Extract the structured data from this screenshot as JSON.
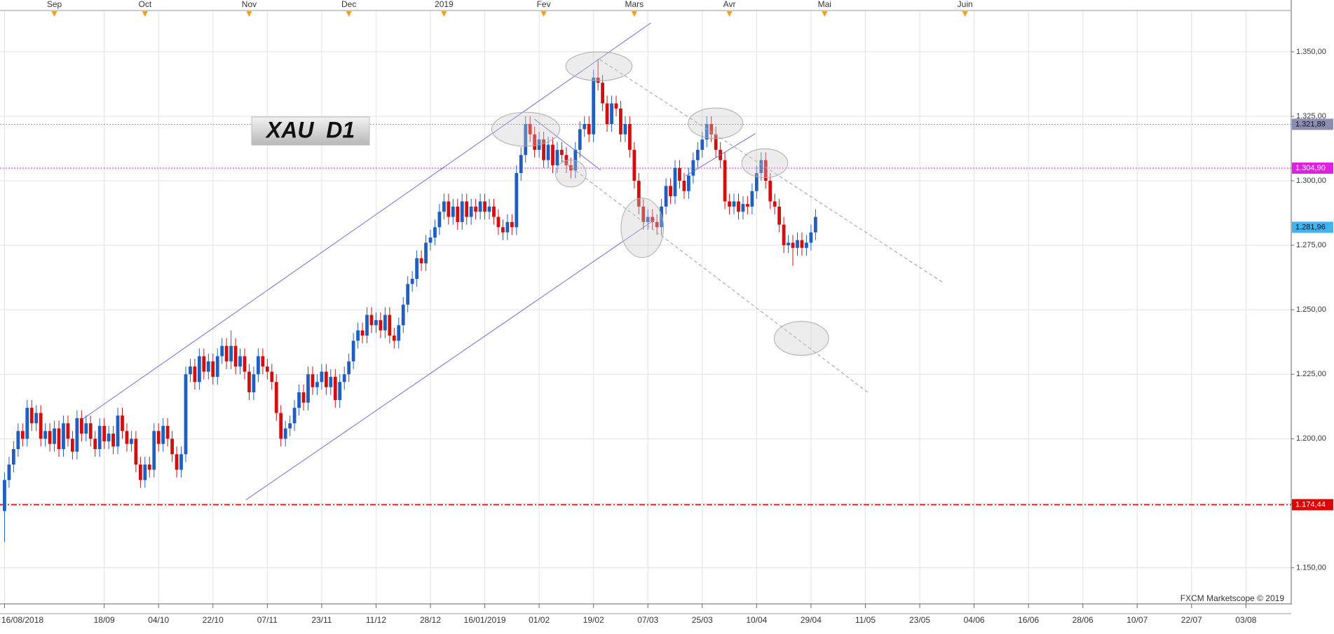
{
  "chart_data": {
    "type": "candlestick",
    "title": "XAU  D1",
    "credit": "FXCM Marketscope © 2019",
    "up_color": "#1f5fbf",
    "down_color": "#d01010",
    "grid": true,
    "xlim": [
      -1,
      284
    ],
    "ylim": [
      1136,
      1366
    ],
    "yticks": [
      {
        "value": 1150,
        "label": "1.150,00"
      },
      {
        "value": 1175,
        "label": "1.175,00"
      },
      {
        "value": 1200,
        "label": "1.200,00"
      },
      {
        "value": 1225,
        "label": "1.225,00"
      },
      {
        "value": 1250,
        "label": "1.250,00"
      },
      {
        "value": 1275,
        "label": "1.275,00"
      },
      {
        "value": 1300,
        "label": "1.300,00"
      },
      {
        "value": 1325,
        "label": "1.325,00"
      },
      {
        "value": 1350,
        "label": "1.350,00"
      }
    ],
    "xticks": [
      {
        "value": 0,
        "label": "16/08/2018"
      },
      {
        "value": 22,
        "label": "18/09"
      },
      {
        "value": 34,
        "label": "04/10"
      },
      {
        "value": 46,
        "label": "22/10"
      },
      {
        "value": 58,
        "label": "07/11"
      },
      {
        "value": 70,
        "label": "23/11"
      },
      {
        "value": 82,
        "label": "11/12"
      },
      {
        "value": 94,
        "label": "28/12"
      },
      {
        "value": 106,
        "label": "16/01/2019"
      },
      {
        "value": 118,
        "label": "01/02"
      },
      {
        "value": 130,
        "label": "19/02"
      },
      {
        "value": 142,
        "label": "07/03"
      },
      {
        "value": 154,
        "label": "25/03"
      },
      {
        "value": 166,
        "label": "10/04"
      },
      {
        "value": 178,
        "label": "29/04"
      },
      {
        "value": 190,
        "label": "11/05"
      },
      {
        "value": 202,
        "label": "23/05"
      },
      {
        "value": 214,
        "label": "04/06"
      },
      {
        "value": 226,
        "label": "16/06"
      },
      {
        "value": 238,
        "label": "28/06"
      },
      {
        "value": 250,
        "label": "10/07"
      },
      {
        "value": 262,
        "label": "22/07"
      },
      {
        "value": 274,
        "label": "03/08"
      }
    ],
    "x2ticks": [
      {
        "value": 11,
        "label": "Sep"
      },
      {
        "value": 31,
        "label": "Oct"
      },
      {
        "value": 54,
        "label": "Nov"
      },
      {
        "value": 76,
        "label": "Dec"
      },
      {
        "value": 97,
        "label": "2019"
      },
      {
        "value": 119,
        "label": "Fev"
      },
      {
        "value": 139,
        "label": "Mars"
      },
      {
        "value": 160,
        "label": "Avr"
      },
      {
        "value": 181,
        "label": "Mai"
      },
      {
        "value": 212,
        "label": "Juin"
      }
    ],
    "levels": [
      {
        "value": 1321.89,
        "label": "1.321,89",
        "color": "#8c8cb4",
        "text_color": "#111111",
        "style": "dotted"
      },
      {
        "value": 1304.9,
        "label": "1.304,90",
        "color": "#e020e0",
        "text_color": "#ffffff",
        "style": "dotted"
      },
      {
        "value": 1281.96,
        "label": "1.281,96",
        "color": "#40b4f0",
        "text_color": "#111111",
        "style": "none"
      },
      {
        "value": 1174.44,
        "label": "1.174,44",
        "color": "#e00000",
        "text_color": "#ffffff",
        "style": "dash-dot"
      }
    ],
    "x": [
      0,
      1,
      2,
      3,
      4,
      5,
      6,
      7,
      8,
      9,
      10,
      11,
      12,
      13,
      14,
      15,
      16,
      17,
      18,
      19,
      20,
      21,
      22,
      23,
      24,
      25,
      26,
      27,
      28,
      29,
      30,
      31,
      32,
      33,
      34,
      35,
      36,
      37,
      38,
      39,
      40,
      41,
      42,
      43,
      44,
      45,
      46,
      47,
      48,
      49,
      50,
      51,
      52,
      53,
      54,
      55,
      56,
      57,
      58,
      59,
      60,
      61,
      62,
      63,
      64,
      65,
      66,
      67,
      68,
      69,
      70,
      71,
      72,
      73,
      74,
      75,
      76,
      77,
      78,
      79,
      80,
      81,
      82,
      83,
      84,
      85,
      86,
      87,
      88,
      89,
      90,
      91,
      92,
      93,
      94,
      95,
      96,
      97,
      98,
      99,
      100,
      101,
      102,
      103,
      104,
      105,
      106,
      107,
      108,
      109,
      110,
      111,
      112,
      113,
      114,
      115,
      116,
      117,
      118,
      119,
      120,
      121,
      122,
      123,
      124,
      125,
      126,
      127,
      128,
      129,
      130,
      131,
      132,
      133,
      134,
      135,
      136,
      137,
      138,
      139,
      140,
      141,
      142,
      143,
      144,
      145,
      146,
      147,
      148,
      149,
      150,
      151,
      152,
      153,
      154,
      155,
      156,
      157,
      158,
      159,
      160,
      161,
      162,
      163,
      164,
      165,
      166,
      167,
      168,
      169,
      170,
      171,
      172,
      173,
      174,
      175,
      176,
      177,
      178,
      179
    ],
    "open": [
      1172,
      1184,
      1190,
      1196,
      1203,
      1200,
      1212,
      1206,
      1210,
      1200,
      1203,
      1198,
      1204,
      1196,
      1206,
      1200,
      1195,
      1208,
      1202,
      1206,
      1200,
      1196,
      1205,
      1199,
      1202,
      1197,
      1209,
      1203,
      1198,
      1200,
      1190,
      1184,
      1190,
      1188,
      1203,
      1198,
      1205,
      1200,
      1194,
      1188,
      1194,
      1225,
      1228,
      1222,
      1232,
      1226,
      1230,
      1224,
      1232,
      1236,
      1230,
      1236,
      1228,
      1232,
      1226,
      1218,
      1225,
      1232,
      1228,
      1226,
      1222,
      1210,
      1200,
      1204,
      1206,
      1212,
      1218,
      1214,
      1225,
      1220,
      1222,
      1226,
      1220,
      1224,
      1215,
      1222,
      1225,
      1230,
      1238,
      1242,
      1240,
      1248,
      1244,
      1246,
      1242,
      1248,
      1240,
      1238,
      1244,
      1252,
      1260,
      1262,
      1270,
      1268,
      1276,
      1278,
      1282,
      1288,
      1292,
      1286,
      1290,
      1284,
      1292,
      1286,
      1290,
      1288,
      1292,
      1288,
      1290,
      1286,
      1282,
      1280,
      1284,
      1282,
      1303,
      1310,
      1322,
      1318,
      1312,
      1316,
      1308,
      1314,
      1306,
      1312,
      1310,
      1306,
      1304,
      1312,
      1320,
      1322,
      1318,
      1340,
      1338,
      1330,
      1322,
      1330,
      1328,
      1318,
      1322,
      1312,
      1300,
      1290,
      1284,
      1286,
      1284,
      1282,
      1290,
      1298,
      1294,
      1305,
      1300,
      1296,
      1302,
      1308,
      1312,
      1316,
      1322,
      1318,
      1312,
      1308,
      1292,
      1290,
      1292,
      1288,
      1291,
      1290,
      1296,
      1303,
      1308,
      1300,
      1292,
      1290,
      1283,
      1275,
      1276,
      1274,
      1277,
      1274,
      1276,
      1280
    ],
    "high": [
      1187,
      1193,
      1199,
      1206,
      1206,
      1215,
      1215,
      1213,
      1213,
      1206,
      1206,
      1207,
      1207,
      1209,
      1209,
      1203,
      1211,
      1211,
      1209,
      1209,
      1203,
      1208,
      1208,
      1205,
      1205,
      1212,
      1212,
      1206,
      1203,
      1203,
      1193,
      1193,
      1193,
      1206,
      1206,
      1208,
      1208,
      1203,
      1197,
      1197,
      1228,
      1231,
      1231,
      1235,
      1235,
      1233,
      1233,
      1235,
      1239,
      1239,
      1242,
      1239,
      1235,
      1235,
      1229,
      1228,
      1235,
      1235,
      1231,
      1229,
      1225,
      1213,
      1207,
      1209,
      1215,
      1221,
      1221,
      1228,
      1228,
      1225,
      1229,
      1229,
      1227,
      1227,
      1225,
      1228,
      1233,
      1241,
      1245,
      1245,
      1251,
      1251,
      1249,
      1249,
      1251,
      1251,
      1243,
      1247,
      1255,
      1263,
      1265,
      1273,
      1273,
      1279,
      1281,
      1285,
      1291,
      1295,
      1295,
      1293,
      1293,
      1295,
      1295,
      1293,
      1293,
      1295,
      1295,
      1293,
      1293,
      1289,
      1285,
      1287,
      1287,
      1306,
      1313,
      1325,
      1325,
      1321,
      1319,
      1319,
      1317,
      1317,
      1315,
      1315,
      1313,
      1309,
      1315,
      1323,
      1325,
      1325,
      1343,
      1347,
      1341,
      1333,
      1333,
      1333,
      1331,
      1325,
      1325,
      1315,
      1303,
      1293,
      1289,
      1289,
      1287,
      1293,
      1301,
      1301,
      1308,
      1308,
      1303,
      1305,
      1311,
      1315,
      1319,
      1325,
      1325,
      1321,
      1315,
      1311,
      1295,
      1295,
      1295,
      1294,
      1294,
      1299,
      1306,
      1311,
      1311,
      1303,
      1295,
      1293,
      1286,
      1279,
      1279,
      1280,
      1280,
      1279,
      1283,
      1289
    ],
    "low": [
      1160,
      1181,
      1187,
      1193,
      1197,
      1197,
      1203,
      1203,
      1197,
      1197,
      1195,
      1195,
      1193,
      1193,
      1197,
      1192,
      1192,
      1199,
      1199,
      1197,
      1193,
      1193,
      1196,
      1196,
      1194,
      1194,
      1200,
      1195,
      1195,
      1187,
      1181,
      1181,
      1185,
      1185,
      1195,
      1195,
      1197,
      1191,
      1185,
      1185,
      1191,
      1222,
      1219,
      1219,
      1223,
      1223,
      1221,
      1221,
      1229,
      1227,
      1227,
      1225,
      1225,
      1223,
      1215,
      1215,
      1222,
      1225,
      1223,
      1219,
      1207,
      1197,
      1197,
      1201,
      1203,
      1209,
      1211,
      1211,
      1217,
      1217,
      1219,
      1217,
      1217,
      1212,
      1212,
      1219,
      1222,
      1227,
      1235,
      1237,
      1237,
      1241,
      1241,
      1239,
      1239,
      1237,
      1235,
      1235,
      1241,
      1249,
      1257,
      1259,
      1265,
      1265,
      1273,
      1275,
      1279,
      1285,
      1283,
      1283,
      1281,
      1281,
      1283,
      1283,
      1285,
      1285,
      1285,
      1285,
      1283,
      1279,
      1277,
      1277,
      1279,
      1279,
      1300,
      1307,
      1315,
      1309,
      1309,
      1305,
      1305,
      1303,
      1303,
      1307,
      1303,
      1301,
      1301,
      1309,
      1317,
      1315,
      1315,
      1335,
      1327,
      1319,
      1319,
      1325,
      1315,
      1315,
      1309,
      1297,
      1287,
      1281,
      1281,
      1281,
      1279,
      1279,
      1287,
      1291,
      1291,
      1297,
      1293,
      1293,
      1299,
      1305,
      1309,
      1313,
      1315,
      1309,
      1305,
      1289,
      1287,
      1287,
      1285,
      1285,
      1287,
      1287,
      1293,
      1300,
      1297,
      1289,
      1287,
      1280,
      1272,
      1272,
      1267,
      1271,
      1271,
      1271,
      1273,
      1277
    ],
    "close": [
      1184,
      1190,
      1196,
      1203,
      1200,
      1212,
      1206,
      1210,
      1200,
      1203,
      1198,
      1204,
      1196,
      1206,
      1200,
      1195,
      1208,
      1202,
      1206,
      1200,
      1196,
      1205,
      1199,
      1202,
      1197,
      1209,
      1203,
      1198,
      1200,
      1190,
      1184,
      1190,
      1188,
      1203,
      1198,
      1205,
      1200,
      1194,
      1188,
      1194,
      1225,
      1228,
      1222,
      1232,
      1226,
      1230,
      1224,
      1232,
      1236,
      1230,
      1236,
      1228,
      1232,
      1226,
      1218,
      1225,
      1232,
      1228,
      1226,
      1222,
      1210,
      1200,
      1204,
      1206,
      1212,
      1218,
      1214,
      1225,
      1220,
      1222,
      1226,
      1220,
      1224,
      1215,
      1222,
      1225,
      1230,
      1238,
      1242,
      1240,
      1248,
      1244,
      1246,
      1242,
      1248,
      1240,
      1238,
      1244,
      1252,
      1260,
      1262,
      1270,
      1268,
      1276,
      1278,
      1282,
      1288,
      1292,
      1286,
      1290,
      1284,
      1292,
      1286,
      1290,
      1288,
      1292,
      1288,
      1290,
      1286,
      1282,
      1280,
      1284,
      1282,
      1303,
      1310,
      1322,
      1318,
      1312,
      1316,
      1308,
      1314,
      1306,
      1312,
      1310,
      1306,
      1304,
      1312,
      1320,
      1322,
      1318,
      1340,
      1338,
      1330,
      1322,
      1330,
      1328,
      1318,
      1322,
      1312,
      1300,
      1290,
      1284,
      1286,
      1284,
      1282,
      1290,
      1298,
      1294,
      1305,
      1300,
      1296,
      1302,
      1308,
      1312,
      1316,
      1322,
      1318,
      1312,
      1308,
      1292,
      1290,
      1292,
      1288,
      1291,
      1290,
      1296,
      1303,
      1308,
      1300,
      1292,
      1290,
      1283,
      1275,
      1276,
      1274,
      1277,
      1274,
      1276,
      1280,
      1286
    ]
  }
}
